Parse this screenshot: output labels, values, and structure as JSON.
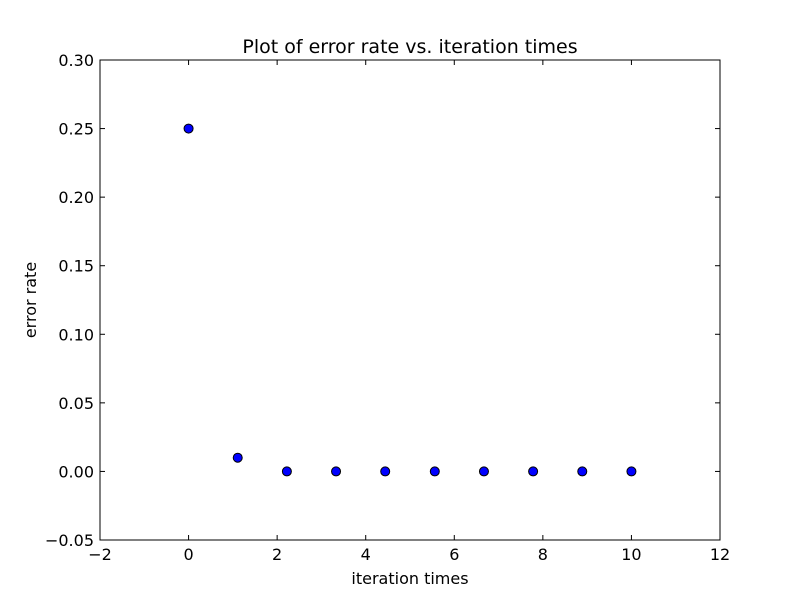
{
  "chart_data": {
    "type": "scatter",
    "title": "Plot of error rate vs. iteration times",
    "xlabel": "iteration times",
    "ylabel": "error rate",
    "xlim": [
      -2,
      12
    ],
    "ylim": [
      -0.05,
      0.3
    ],
    "xticks": [
      -2,
      0,
      2,
      4,
      6,
      8,
      10,
      12
    ],
    "yticks": [
      -0.05,
      0.0,
      0.05,
      0.1,
      0.15,
      0.2,
      0.25,
      0.3
    ],
    "xtick_labels": [
      "−2",
      "0",
      "2",
      "4",
      "6",
      "8",
      "10",
      "12"
    ],
    "ytick_labels": [
      "−0.05",
      "0.00",
      "0.05",
      "0.10",
      "0.15",
      "0.20",
      "0.25",
      "0.30"
    ],
    "grid": false,
    "marker_color": "#0000ff",
    "marker_edge_color": "#000000",
    "series": [
      {
        "x": [
          0,
          1.11,
          2.22,
          3.33,
          4.44,
          5.56,
          6.67,
          7.78,
          8.89,
          10
        ],
        "y": [
          0.25,
          0.01,
          0.0,
          0.0,
          0.0,
          0.0,
          0.0,
          0.0,
          0.0,
          0.0
        ]
      }
    ]
  }
}
